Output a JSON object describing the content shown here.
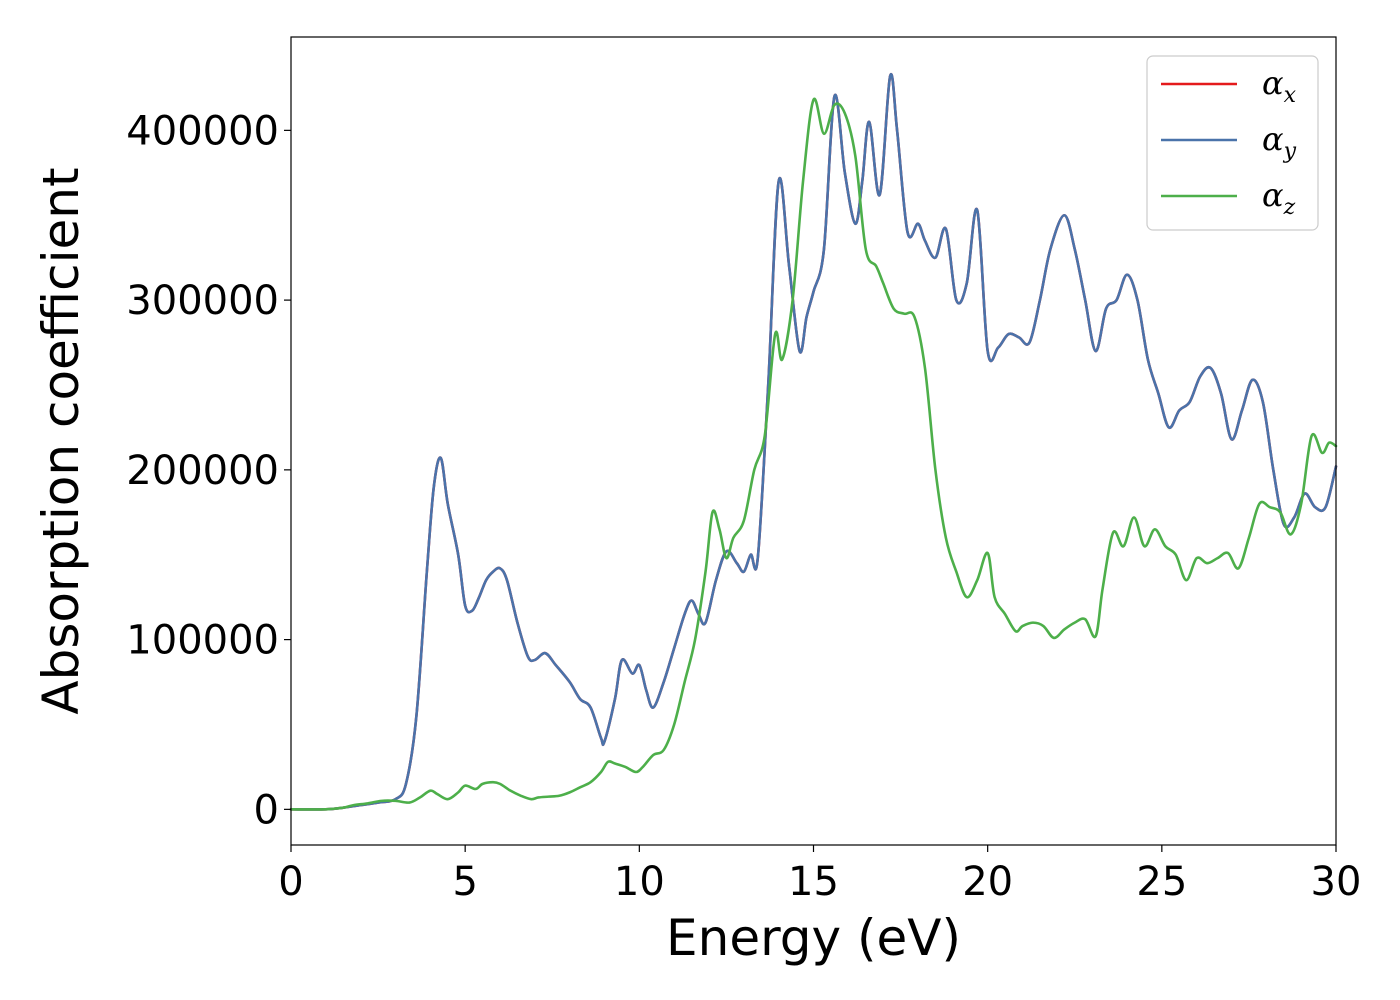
{
  "chart_data": {
    "type": "line",
    "xlabel": "Energy (eV)",
    "ylabel": "Absorption coefficient",
    "xlim": [
      0,
      30
    ],
    "ylim": [
      -21000,
      455000
    ],
    "xticks": [
      0,
      5,
      10,
      15,
      20,
      25,
      30
    ],
    "yticks": [
      0,
      100000,
      200000,
      300000,
      400000
    ],
    "xtick_labels": [
      "0",
      "5",
      "10",
      "15",
      "20",
      "25",
      "30"
    ],
    "ytick_labels": [
      "0",
      "100000",
      "200000",
      "300000",
      "400000"
    ],
    "grid": false,
    "legend_position": "top-right",
    "series": [
      {
        "name": "αx",
        "symbol": "α",
        "subscript": "x",
        "color": "#e41a1c",
        "hidden_under": "αy",
        "x": [
          0,
          1,
          1.5,
          2,
          2.5,
          3,
          3.3,
          3.6,
          3.9,
          4.1,
          4.3,
          4.5,
          4.8,
          5.0,
          5.2,
          5.4,
          5.6,
          5.8,
          6.0,
          6.2,
          6.5,
          6.8,
          7.0,
          7.3,
          7.6,
          8.0,
          8.3,
          8.6,
          8.9,
          9.0,
          9.3,
          9.5,
          9.8,
          10.0,
          10.2,
          10.4,
          10.7,
          11.0,
          11.3,
          11.5,
          11.7,
          11.9,
          12.2,
          12.5,
          12.8,
          13.0,
          13.2,
          13.4,
          13.7,
          14.0,
          14.3,
          14.6,
          14.8,
          15.0,
          15.3,
          15.6,
          15.9,
          16.2,
          16.4,
          16.6,
          16.9,
          17.2,
          17.4,
          17.7,
          18.0,
          18.2,
          18.5,
          18.8,
          19.1,
          19.4,
          19.7,
          20.0,
          20.3,
          20.6,
          20.9,
          21.2,
          21.5,
          21.8,
          22.2,
          22.5,
          22.8,
          23.1,
          23.4,
          23.7,
          24.0,
          24.3,
          24.6,
          24.9,
          25.2,
          25.5,
          25.8,
          26.1,
          26.4,
          26.7,
          27.0,
          27.3,
          27.6,
          27.9,
          28.2,
          28.5,
          28.8,
          29.1,
          29.4,
          29.7,
          30.0
        ],
        "y": [
          0,
          0,
          1000,
          2500,
          4000,
          6000,
          15000,
          55000,
          140000,
          190000,
          207000,
          180000,
          150000,
          120000,
          117000,
          125000,
          135000,
          140000,
          142000,
          135000,
          110000,
          90000,
          88000,
          92000,
          85000,
          75000,
          65000,
          60000,
          42000,
          40000,
          65000,
          88000,
          80000,
          85000,
          70000,
          60000,
          75000,
          95000,
          115000,
          123000,
          115000,
          110000,
          135000,
          152000,
          145000,
          140000,
          150000,
          148000,
          250000,
          370000,
          320000,
          270000,
          290000,
          305000,
          330000,
          420000,
          375000,
          345000,
          370000,
          405000,
          362000,
          432000,
          400000,
          340000,
          345000,
          335000,
          325000,
          342000,
          300000,
          310000,
          353000,
          270000,
          272000,
          280000,
          278000,
          275000,
          300000,
          330000,
          350000,
          330000,
          300000,
          270000,
          295000,
          300000,
          315000,
          300000,
          265000,
          245000,
          225000,
          235000,
          240000,
          255000,
          260000,
          245000,
          218000,
          235000,
          253000,
          240000,
          200000,
          168000,
          172000,
          186000,
          178000,
          178000,
          202000
        ]
      },
      {
        "name": "αy",
        "symbol": "α",
        "subscript": "y",
        "color": "#4a73aa",
        "x": [
          0,
          1,
          1.5,
          2,
          2.5,
          3,
          3.3,
          3.6,
          3.9,
          4.1,
          4.3,
          4.5,
          4.8,
          5.0,
          5.2,
          5.4,
          5.6,
          5.8,
          6.0,
          6.2,
          6.5,
          6.8,
          7.0,
          7.3,
          7.6,
          8.0,
          8.3,
          8.6,
          8.9,
          9.0,
          9.3,
          9.5,
          9.8,
          10.0,
          10.2,
          10.4,
          10.7,
          11.0,
          11.3,
          11.5,
          11.7,
          11.9,
          12.2,
          12.5,
          12.8,
          13.0,
          13.2,
          13.4,
          13.7,
          14.0,
          14.3,
          14.6,
          14.8,
          15.0,
          15.3,
          15.6,
          15.9,
          16.2,
          16.4,
          16.6,
          16.9,
          17.2,
          17.4,
          17.7,
          18.0,
          18.2,
          18.5,
          18.8,
          19.1,
          19.4,
          19.7,
          20.0,
          20.3,
          20.6,
          20.9,
          21.2,
          21.5,
          21.8,
          22.2,
          22.5,
          22.8,
          23.1,
          23.4,
          23.7,
          24.0,
          24.3,
          24.6,
          24.9,
          25.2,
          25.5,
          25.8,
          26.1,
          26.4,
          26.7,
          27.0,
          27.3,
          27.6,
          27.9,
          28.2,
          28.5,
          28.8,
          29.1,
          29.4,
          29.7,
          30.0
        ],
        "y": [
          0,
          0,
          1000,
          2500,
          4000,
          6000,
          15000,
          55000,
          140000,
          190000,
          207000,
          180000,
          150000,
          120000,
          117000,
          125000,
          135000,
          140000,
          142000,
          135000,
          110000,
          90000,
          88000,
          92000,
          85000,
          75000,
          65000,
          60000,
          42000,
          40000,
          65000,
          88000,
          80000,
          85000,
          70000,
          60000,
          75000,
          95000,
          115000,
          123000,
          115000,
          110000,
          135000,
          152000,
          145000,
          140000,
          150000,
          148000,
          250000,
          370000,
          320000,
          270000,
          290000,
          305000,
          330000,
          420000,
          375000,
          345000,
          370000,
          405000,
          362000,
          432000,
          400000,
          340000,
          345000,
          335000,
          325000,
          342000,
          300000,
          310000,
          353000,
          270000,
          272000,
          280000,
          278000,
          275000,
          300000,
          330000,
          350000,
          330000,
          300000,
          270000,
          295000,
          300000,
          315000,
          300000,
          265000,
          245000,
          225000,
          235000,
          240000,
          255000,
          260000,
          245000,
          218000,
          235000,
          253000,
          240000,
          200000,
          168000,
          172000,
          186000,
          178000,
          178000,
          202000
        ]
      },
      {
        "name": "αz",
        "symbol": "α",
        "subscript": "z",
        "color": "#4daf4a",
        "x": [
          0,
          1,
          1.5,
          1.8,
          2.2,
          2.6,
          3.0,
          3.4,
          3.7,
          4.0,
          4.2,
          4.5,
          4.8,
          5.0,
          5.3,
          5.5,
          5.8,
          6.0,
          6.3,
          6.6,
          6.9,
          7.1,
          7.4,
          7.7,
          8.0,
          8.3,
          8.6,
          8.9,
          9.1,
          9.3,
          9.6,
          9.9,
          10.1,
          10.4,
          10.7,
          11.0,
          11.3,
          11.6,
          11.9,
          12.1,
          12.3,
          12.5,
          12.7,
          13.0,
          13.3,
          13.6,
          13.9,
          14.1,
          14.4,
          14.7,
          15.0,
          15.3,
          15.6,
          15.9,
          16.2,
          16.5,
          16.8,
          17.0,
          17.3,
          17.6,
          17.9,
          18.2,
          18.5,
          18.8,
          19.1,
          19.4,
          19.7,
          20.0,
          20.2,
          20.5,
          20.8,
          21.0,
          21.3,
          21.6,
          21.9,
          22.2,
          22.5,
          22.8,
          23.1,
          23.3,
          23.6,
          23.9,
          24.2,
          24.5,
          24.8,
          25.1,
          25.4,
          25.7,
          26.0,
          26.3,
          26.6,
          26.9,
          27.2,
          27.5,
          27.8,
          28.1,
          28.4,
          28.7,
          29.0,
          29.3,
          29.6,
          29.8,
          30.0
        ],
        "y": [
          0,
          0,
          1000,
          2500,
          3500,
          5000,
          5000,
          4000,
          7000,
          11000,
          9000,
          6000,
          10000,
          14000,
          12000,
          15000,
          16000,
          15000,
          11000,
          8000,
          6000,
          7000,
          7500,
          8000,
          10000,
          13000,
          16000,
          22000,
          28000,
          27000,
          25000,
          22000,
          25000,
          32000,
          35000,
          50000,
          75000,
          100000,
          140000,
          175000,
          165000,
          148000,
          160000,
          170000,
          200000,
          220000,
          280000,
          265000,
          300000,
          370000,
          418000,
          398000,
          415000,
          410000,
          385000,
          330000,
          320000,
          310000,
          295000,
          292000,
          290000,
          260000,
          200000,
          160000,
          140000,
          125000,
          135000,
          151000,
          125000,
          115000,
          105000,
          108000,
          110000,
          108000,
          101000,
          106000,
          110000,
          112000,
          102000,
          130000,
          163000,
          155000,
          172000,
          155000,
          165000,
          155000,
          150000,
          135000,
          148000,
          145000,
          148000,
          151000,
          142000,
          160000,
          180000,
          178000,
          175000,
          162000,
          180000,
          220000,
          210000,
          216000,
          214000
        ]
      }
    ]
  }
}
